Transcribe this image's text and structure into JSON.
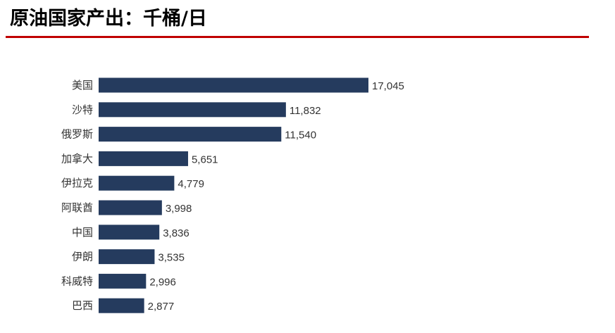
{
  "chart_data": {
    "type": "bar",
    "orientation": "horizontal",
    "title": "原油国家产出：千桶/日",
    "categories": [
      "美国",
      "沙特",
      "俄罗斯",
      "加拿大",
      "伊拉克",
      "阿联酋",
      "中国",
      "伊朗",
      "科威特",
      "巴西"
    ],
    "values": [
      17045,
      11832,
      11540,
      5651,
      4779,
      3998,
      3836,
      3535,
      2996,
      2877
    ],
    "value_labels": [
      "17,045",
      "11,832",
      "11,540",
      "5,651",
      "4,779",
      "3,998",
      "3,836",
      "3,535",
      "2,996",
      "2,877"
    ],
    "xlim": [
      0,
      17045
    ],
    "grid": false,
    "bar_color": "#253b5e",
    "rule_color": "#c00000"
  }
}
